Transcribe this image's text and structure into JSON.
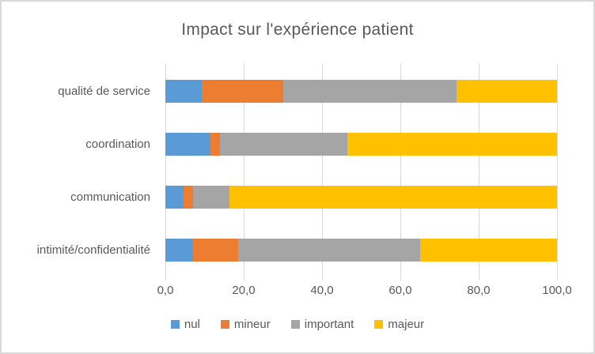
{
  "window": {
    "background_color": "#FFFFFF",
    "border_color": "#D9D9D9",
    "text_color": "#595959"
  },
  "chart_data": {
    "type": "bar",
    "subtype": "stacked-100-percent",
    "orientation": "horizontal",
    "title": "Impact sur l'expérience patient",
    "categories": [
      "qualité de service",
      "coordination",
      "communication",
      "intimité/confidentialité"
    ],
    "series": [
      {
        "name": "nul",
        "color": "#5B9BD5",
        "values": [
          9.3,
          11.6,
          4.7,
          7.0
        ]
      },
      {
        "name": "mineur",
        "color": "#ED7D31",
        "values": [
          20.9,
          2.3,
          2.3,
          11.6
        ]
      },
      {
        "name": "important",
        "color": "#A5A5A5",
        "values": [
          44.2,
          32.6,
          9.3,
          46.5
        ]
      },
      {
        "name": "majeur",
        "color": "#FFC000",
        "values": [
          25.6,
          53.5,
          83.7,
          34.9
        ]
      }
    ],
    "x_axis": {
      "min": 0,
      "max": 100,
      "tick_step": 20,
      "tick_labels": [
        "0,0",
        "20,0",
        "40,0",
        "60,0",
        "80,0",
        "100,0"
      ],
      "gridlines": true,
      "gridline_color": "#D9D9D9"
    },
    "legend": {
      "position": "bottom",
      "entries": [
        "nul",
        "mineur",
        "important",
        "majeur"
      ]
    }
  }
}
